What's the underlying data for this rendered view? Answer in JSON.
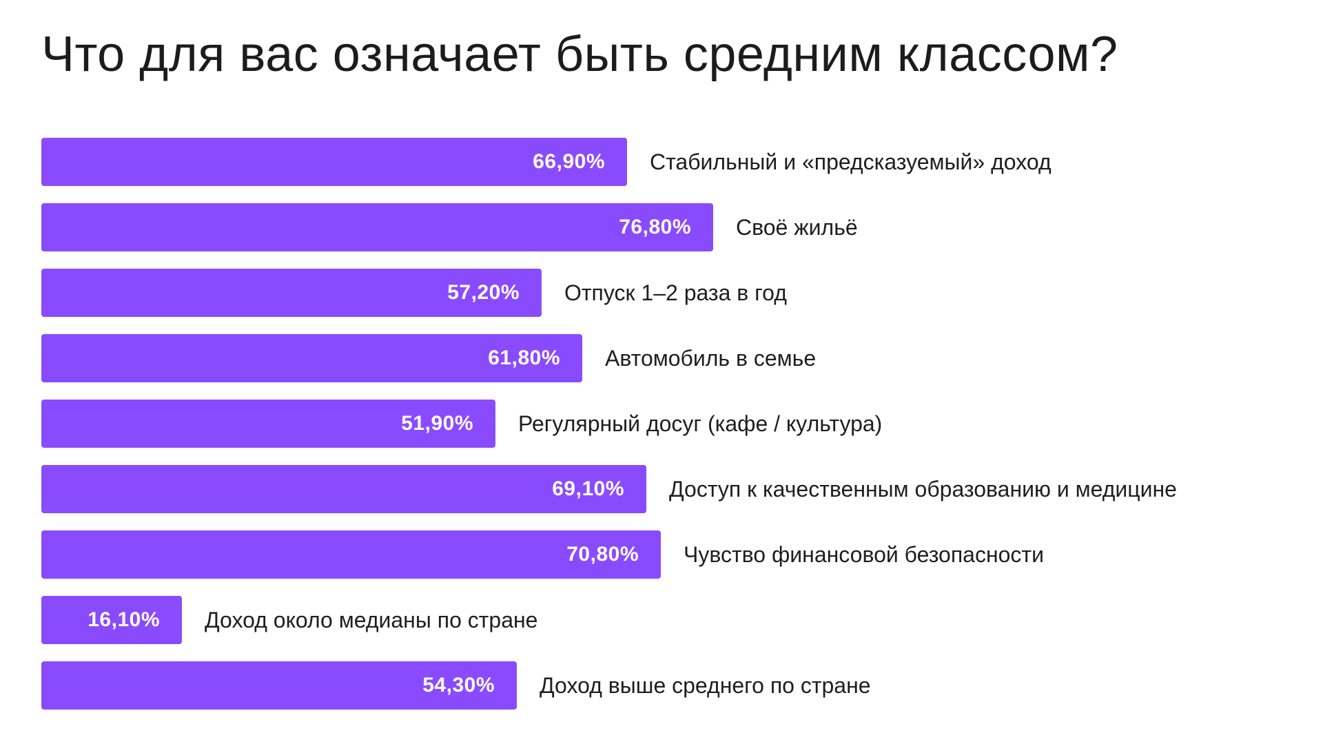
{
  "chart_data": {
    "type": "bar",
    "orientation": "horizontal",
    "title": "Что для вас означает быть средним классом?",
    "bar_color": "#8a4bff",
    "value_suffix": "%",
    "xlim": [
      0,
      100
    ],
    "grid": false,
    "categories": [
      "Стабильный и «предсказуемый» доход",
      "Своё жильё",
      "Отпуск 1–2 раза в год",
      "Автомобиль в семье",
      "Регулярный досуг (кафе / культура)",
      "Доступ к качественным образованию и медицине",
      "Чувство финансовой безопасности",
      "Доход около медианы по стране",
      "Доход выше среднего по стране"
    ],
    "values": [
      66.9,
      76.8,
      57.2,
      61.8,
      51.9,
      69.1,
      70.8,
      16.1,
      54.3
    ],
    "value_labels": [
      "66,90%",
      "76,80%",
      "57,20%",
      "61,80%",
      "51,90%",
      "69,10%",
      "70,80%",
      "16,10%",
      "54,30%"
    ]
  }
}
